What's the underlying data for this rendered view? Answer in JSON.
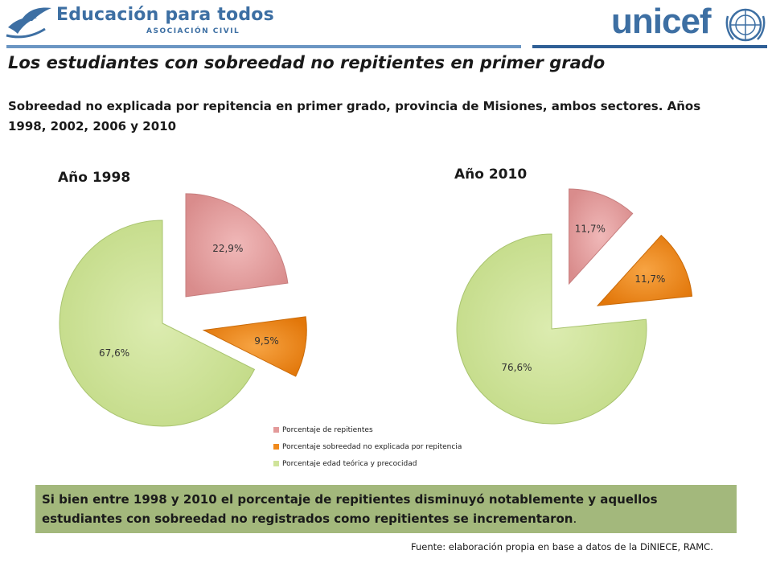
{
  "header": {
    "brand_left": "Educación para todos",
    "brand_left_sub": "ASOCIACIÓN CIVIL",
    "brand_right": "unicef"
  },
  "title": "Los estudiantes con sobreedad no repitientes en primer grado",
  "subtitle": "Sobreedad no explicada por repitencia en primer grado, provincia de Misiones, ambos sectores. Años 1998, 2002, 2006 y 2010",
  "colors": {
    "repitientes": "#e39a9a",
    "sobreedad": "#f08a1c",
    "edad_teorica": "#cfe39a",
    "brand": "#3d6fa3"
  },
  "chart_data": [
    {
      "type": "pie",
      "title": "Año 1998",
      "categories": [
        "Porcentaje de repitientes",
        "Porcentaje sobreedad no explicada por repitencia",
        "Porcentaje edad teórica y precocidad"
      ],
      "values": [
        22.9,
        9.5,
        67.6
      ],
      "labels": [
        "22,9%",
        "9,5%",
        "67,6%"
      ],
      "legend": "bottom"
    },
    {
      "type": "pie",
      "title": "Año 2010",
      "categories": [
        "Porcentaje de repitientes",
        "Porcentaje sobreedad no explicada por repitencia",
        "Porcentaje edad teórica y precocidad"
      ],
      "values": [
        11.7,
        11.7,
        76.6
      ],
      "labels": [
        "11,7%",
        "11,7%",
        "76,6%"
      ],
      "legend": "bottom"
    }
  ],
  "legend": [
    "Porcentaje de repitientes",
    "Porcentaje sobreedad no explicada por repitencia",
    "Porcentaje edad teórica y precocidad"
  ],
  "note_prefix": "Si bien entre 1998 y 2010 el porcentaje de repitientes disminuyó notablemente y aquellos estudiantes con sobreedad no registrados como repitientes se incrementaron",
  "note_suffix": ".",
  "source": "Fuente: elaboración propia en base a datos de la DiNIECE, RAMC."
}
